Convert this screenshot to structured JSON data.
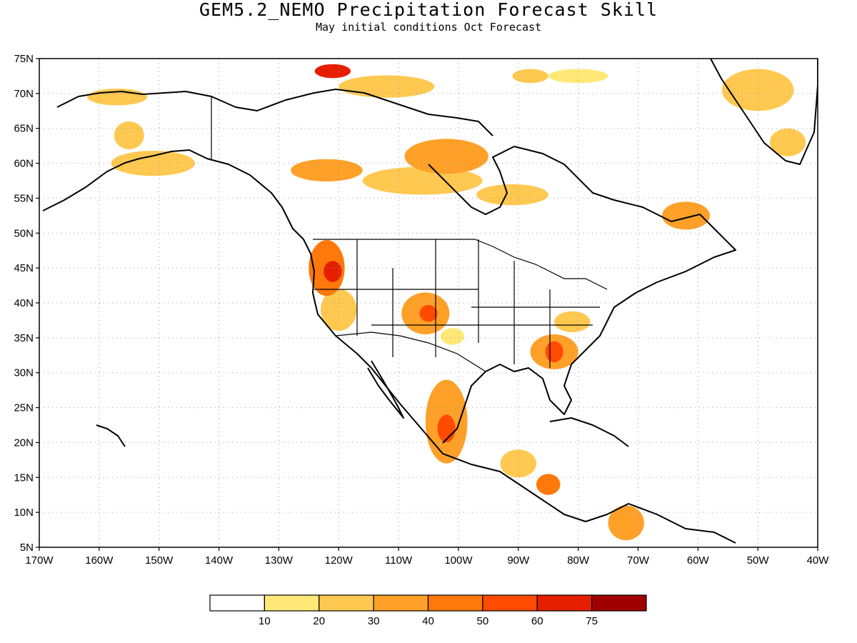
{
  "title": "GEM5.2_NEMO Precipitation Forecast Skill",
  "subtitle": "May initial conditions  Oct Forecast",
  "map": {
    "lon_range": [
      -170,
      -40
    ],
    "lat_range": [
      5,
      75
    ],
    "lat_ticks": [
      "75N",
      "70N",
      "65N",
      "60N",
      "55N",
      "50N",
      "45N",
      "40N",
      "35N",
      "30N",
      "25N",
      "20N",
      "15N",
      "10N",
      "5N"
    ],
    "lat_values": [
      75,
      70,
      65,
      60,
      55,
      50,
      45,
      40,
      35,
      30,
      25,
      20,
      15,
      10,
      5
    ],
    "lon_ticks": [
      "170W",
      "160W",
      "150W",
      "140W",
      "130W",
      "120W",
      "110W",
      "100W",
      "90W",
      "80W",
      "70W",
      "60W",
      "50W",
      "40W"
    ],
    "lon_values": [
      -170,
      -160,
      -150,
      -140,
      -130,
      -120,
      -110,
      -100,
      -90,
      -80,
      -70,
      -60,
      -50,
      -40
    ],
    "gridlines": "dotted"
  },
  "colorbar": {
    "labels": [
      "10",
      "20",
      "30",
      "40",
      "50",
      "60",
      "75"
    ],
    "colors": [
      "#ffffff",
      "#ffe878",
      "#ffc850",
      "#ffa028",
      "#ff780a",
      "#ff4b00",
      "#e61e00",
      "#a00000"
    ]
  },
  "skill_regions": [
    {
      "lon": -157,
      "lat": 69.5,
      "rx": 5,
      "ry": 1.2,
      "level": 2
    },
    {
      "lon": -155,
      "lat": 64,
      "rx": 2.5,
      "ry": 2,
      "level": 2
    },
    {
      "lon": -151,
      "lat": 60,
      "rx": 7,
      "ry": 1.8,
      "level": 2
    },
    {
      "lon": -121,
      "lat": 73.2,
      "rx": 3,
      "ry": 1,
      "level": 6
    },
    {
      "lon": -112,
      "lat": 71,
      "rx": 8,
      "ry": 1.6,
      "level": 2
    },
    {
      "lon": -88,
      "lat": 72.5,
      "rx": 3,
      "ry": 1,
      "level": 2
    },
    {
      "lon": -80,
      "lat": 72.5,
      "rx": 5,
      "ry": 1,
      "level": 1
    },
    {
      "lon": -122,
      "lat": 59,
      "rx": 6,
      "ry": 1.6,
      "level": 3
    },
    {
      "lon": -102,
      "lat": 61,
      "rx": 7,
      "ry": 2.5,
      "level": 3
    },
    {
      "lon": -106,
      "lat": 57.5,
      "rx": 10,
      "ry": 2,
      "level": 2
    },
    {
      "lon": -91,
      "lat": 55.5,
      "rx": 6,
      "ry": 1.5,
      "level": 2
    },
    {
      "lon": -62,
      "lat": 52.5,
      "rx": 4,
      "ry": 2,
      "level": 3
    },
    {
      "lon": -50,
      "lat": 70.5,
      "rx": 6,
      "ry": 3,
      "level": 2
    },
    {
      "lon": -45,
      "lat": 63,
      "rx": 3,
      "ry": 2,
      "level": 2
    },
    {
      "lon": -122,
      "lat": 45,
      "rx": 3,
      "ry": 4,
      "level": 4
    },
    {
      "lon": -121,
      "lat": 44.5,
      "rx": 1.5,
      "ry": 1.5,
      "level": 6
    },
    {
      "lon": -120,
      "lat": 39,
      "rx": 3,
      "ry": 3,
      "level": 2
    },
    {
      "lon": -105.5,
      "lat": 38.5,
      "rx": 4,
      "ry": 3,
      "level": 3
    },
    {
      "lon": -105,
      "lat": 38.5,
      "rx": 1.5,
      "ry": 1.2,
      "level": 5
    },
    {
      "lon": -101,
      "lat": 35.2,
      "rx": 2,
      "ry": 1.2,
      "level": 1
    },
    {
      "lon": -84,
      "lat": 33,
      "rx": 4,
      "ry": 2.5,
      "level": 3
    },
    {
      "lon": -84,
      "lat": 33,
      "rx": 1.5,
      "ry": 1.5,
      "level": 5
    },
    {
      "lon": -81,
      "lat": 37.3,
      "rx": 3,
      "ry": 1.5,
      "level": 2
    },
    {
      "lon": -102,
      "lat": 23,
      "rx": 3.5,
      "ry": 6,
      "level": 3
    },
    {
      "lon": -102,
      "lat": 22,
      "rx": 1.5,
      "ry": 2,
      "level": 5
    },
    {
      "lon": -90,
      "lat": 17,
      "rx": 3,
      "ry": 2,
      "level": 2
    },
    {
      "lon": -85,
      "lat": 14,
      "rx": 2,
      "ry": 1.5,
      "level": 4
    },
    {
      "lon": -72,
      "lat": 8.5,
      "rx": 3,
      "ry": 2.5,
      "level": 3
    }
  ]
}
